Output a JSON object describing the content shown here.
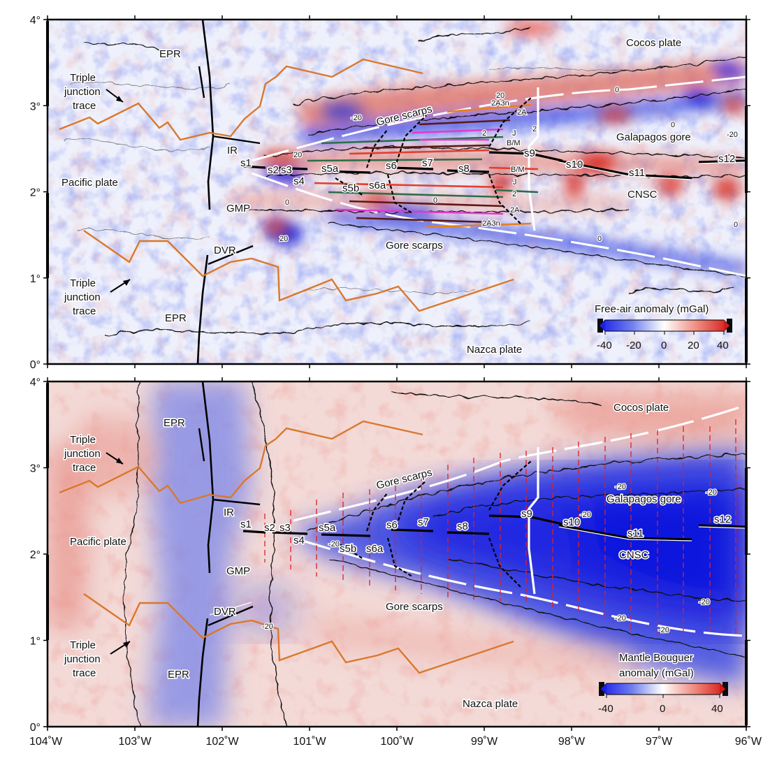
{
  "panels": [
    {
      "id": "free-air",
      "colorbar": {
        "title": [
          "Free-air anomaly (mGal)"
        ],
        "ticks": [
          "-40",
          "-20",
          "0",
          "20",
          "40"
        ],
        "range": [
          -40,
          40
        ]
      },
      "labels": {
        "epr_north": "EPR",
        "epr_south": "EPR",
        "triple_north": [
          "Triple",
          "junction",
          "trace"
        ],
        "triple_south": [
          "Triple",
          "junction",
          "trace"
        ],
        "pacific": "Pacific plate",
        "cocos": "Cocos plate",
        "nazca": "Nazca plate",
        "ir": "IR",
        "gmp": "GMP",
        "dvr": "DVR",
        "gore_scarps_n": "Gore scarps",
        "gore_scarps_s": "Gore scarps",
        "galapagos_gore": "Galapagos gore",
        "cnsc": "CNSC",
        "segments": [
          "s1",
          "s2",
          "s3",
          "s4",
          "s5a",
          "s5b",
          "s6",
          "s6a",
          "s7",
          "s8",
          "s9",
          "s10",
          "s11",
          "s12"
        ],
        "magnetic": {
          "c2a3n_n": "2A3n",
          "c2a_n": "2A",
          "c2_n": "2",
          "j_n": "J",
          "bm_n": "B/M",
          "bm_s": "B/M",
          "j_s": "J",
          "c2_s": "2",
          "c2a_s": "2A",
          "c2a3n_s": "2A3n",
          "c2_n2": "2"
        },
        "contour_labels": [
          "20",
          "0",
          "20",
          "-20",
          "0",
          "0",
          "20",
          "-20",
          "0",
          "0",
          "0"
        ]
      }
    },
    {
      "id": "mantle-bouguer",
      "colorbar": {
        "title": [
          "Mantle Bouguer",
          "anomaly (mGal)"
        ],
        "ticks": [
          "-40",
          "0",
          "40"
        ],
        "range": [
          -40,
          40
        ]
      },
      "labels": {
        "epr_north": "EPR",
        "epr_south": "EPR",
        "triple_north": [
          "Triple",
          "junction",
          "trace"
        ],
        "triple_south": [
          "Triple",
          "junction",
          "trace"
        ],
        "pacific": "Pacific plate",
        "cocos": "Cocos plate",
        "nazca": "Nazca plate",
        "ir": "IR",
        "gmp": "GMP",
        "dvr": "DVR",
        "gore_scarps_n": "Gore scarps",
        "gore_scarps_s": "Gore scarps",
        "galapagos_gore": "Galapagos gore",
        "cnsc": "CNSC",
        "segments": [
          "s1",
          "s2",
          "s3",
          "s4",
          "s5a",
          "s5b",
          "s6",
          "s6a",
          "s7",
          "s8",
          "s9",
          "s10",
          "s11",
          "s12"
        ],
        "contour_labels": [
          "-20",
          "-20",
          "-20",
          "-20",
          "-20",
          "-20",
          "-20",
          "-20"
        ]
      }
    }
  ],
  "axes": {
    "lat_ticks": [
      {
        "value": 0,
        "label": "0°"
      },
      {
        "value": 1,
        "label": "1°"
      },
      {
        "value": 2,
        "label": "2°"
      },
      {
        "value": 3,
        "label": "3°"
      },
      {
        "value": 4,
        "label": "4°"
      }
    ],
    "lon_ticks": [
      {
        "value": -104,
        "label": "104˚W"
      },
      {
        "value": -103,
        "label": "103˚W"
      },
      {
        "value": -102,
        "label": "102˚W"
      },
      {
        "value": -101,
        "label": "101˚W"
      },
      {
        "value": -100,
        "label": "100˚W"
      },
      {
        "value": -99,
        "label": "99˚W"
      },
      {
        "value": -98,
        "label": "98˚W"
      },
      {
        "value": -97,
        "label": "97˚W"
      },
      {
        "value": -96,
        "label": "96˚W"
      }
    ],
    "lon_range": [
      -104,
      -96
    ],
    "lat_range": [
      0,
      4
    ]
  },
  "colors": {
    "negative": "#1f2bd8",
    "positive": "#d6322b",
    "neutral": "#ffffff",
    "triple_trace": "#d9782c",
    "ridge_axis": "#000000",
    "gore_boundary": "#ffffff",
    "profile_lines": "#e02020",
    "iso_c2a3n": "#e8801c",
    "iso_c2a": "#5a1a14",
    "iso_c2": "#e03ad2",
    "iso_j": "#2c6e4a",
    "iso_bm": "#e0402a"
  }
}
